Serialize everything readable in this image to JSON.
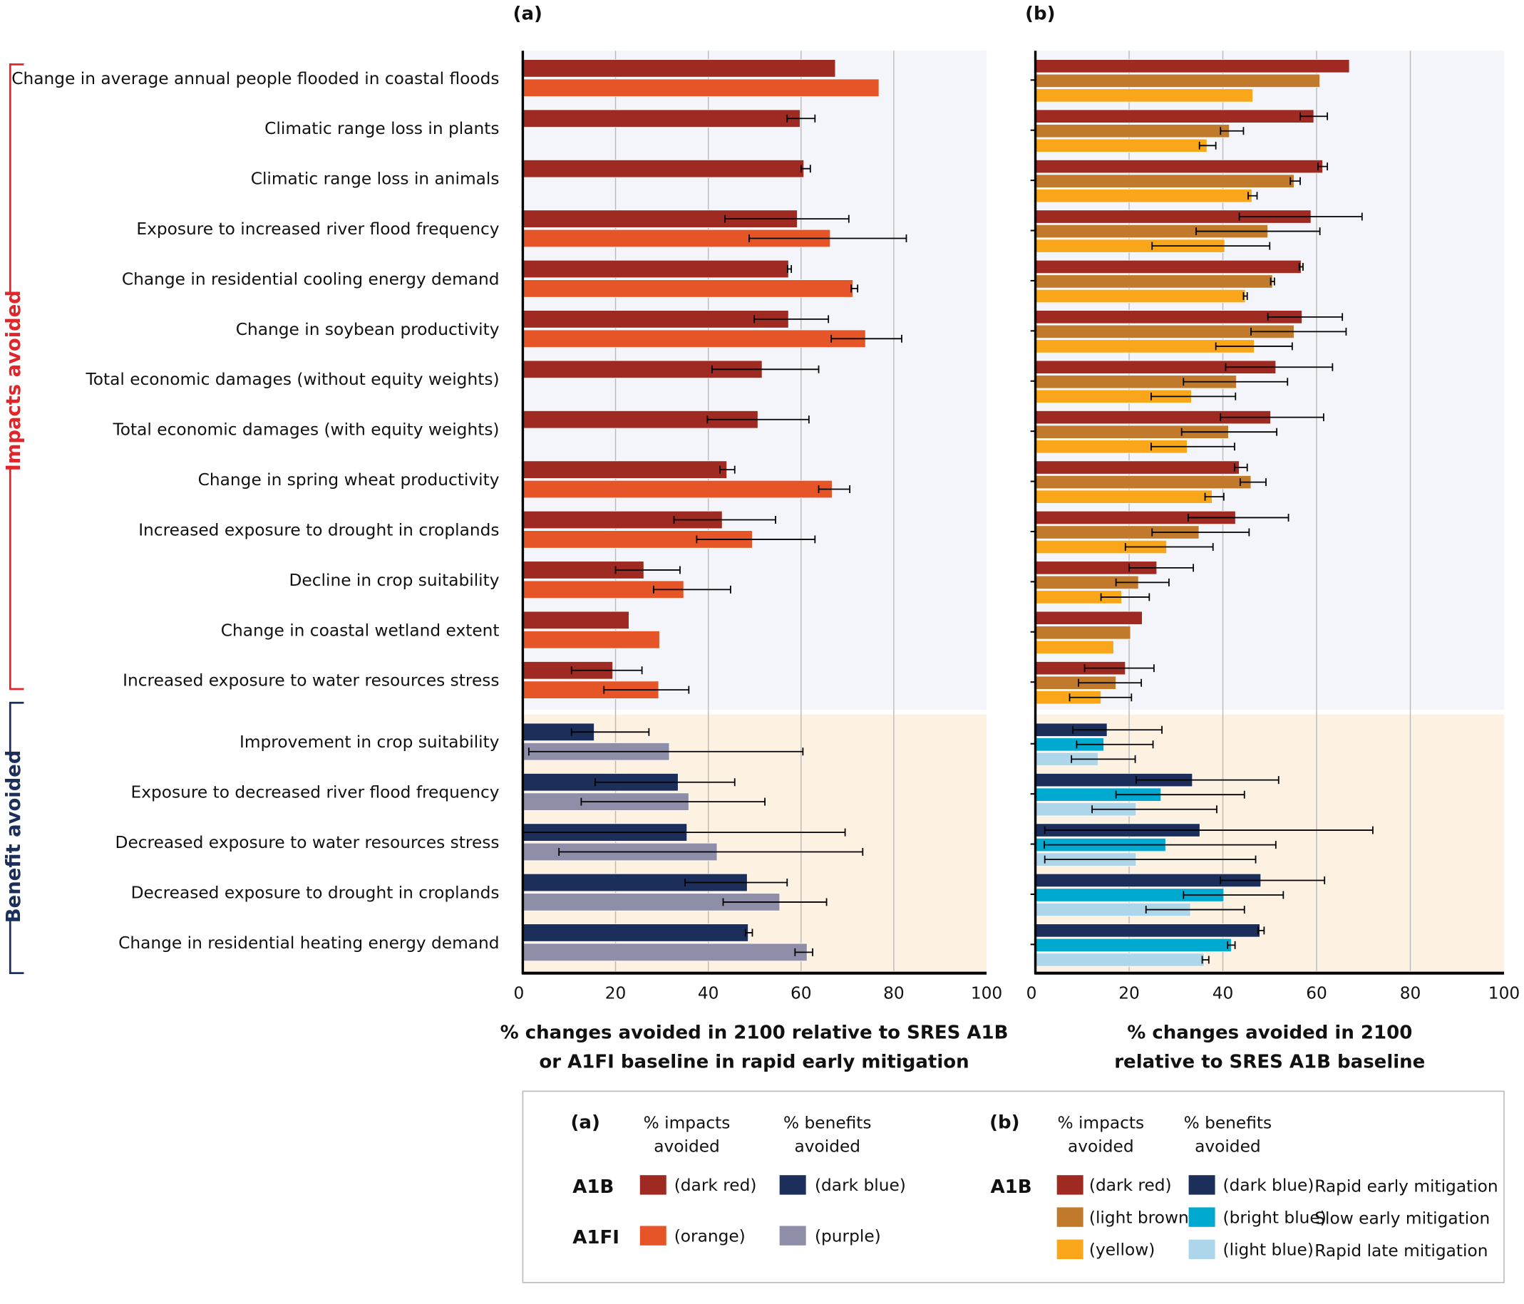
{
  "group_labels": {
    "impacts": "Impacts avoided",
    "benefits": "Benefit avoided"
  },
  "chart_data": [
    {
      "type": "bar",
      "panel": "(a)",
      "orientation": "horizontal",
      "xlabel": [
        "% changes avoided in 2100 relative to SRES A1B",
        "or A1FI baseline in rapid early mitigation"
      ],
      "xlim": [
        0,
        100
      ],
      "xticks": [
        "0",
        "20",
        "40",
        "60",
        "80",
        "100"
      ],
      "grid": true,
      "impact_categories": [
        "Change in average annual people flooded in coastal floods",
        "Climatic range loss in plants",
        "Climatic range loss in animals",
        "Exposure to increased river flood frequency",
        "Change in residential cooling energy demand",
        "Change in soybean productivity",
        "Total economic damages (without equity weights)",
        "Total economic damages (with equity weights)",
        "Change in spring wheat productivity",
        "Increased exposure to drought in croplands",
        "Decline in crop suitability",
        "Change in coastal wetland extent",
        "Increased exposure to water resources stress"
      ],
      "benefit_categories": [
        "Improvement in crop suitability",
        "Exposure to decreased river flood frequency",
        "Decreased exposure to water resources stress",
        "Decreased exposure to drought in croplands",
        "Change in residential heating energy demand"
      ],
      "impact_series": [
        {
          "name": "A1B",
          "color": "#9e2a22",
          "values": [
            67.4,
            59.8,
            60.6,
            59.2,
            57.3,
            57.3,
            51.6,
            50.7,
            44.0,
            43.0,
            26.1,
            22.9,
            19.4
          ],
          "errors": [
            null,
            [
              57,
              63
            ],
            [
              60,
              62
            ],
            [
              43.6,
              70.3
            ],
            [
              57.1,
              57.9
            ],
            [
              49.9,
              65.9
            ],
            [
              40.8,
              63.8
            ],
            [
              39.8,
              61.7
            ],
            [
              42.5,
              45.7
            ],
            [
              32.6,
              54.5
            ],
            [
              20,
              33.9
            ],
            null,
            [
              10.5,
              25.7
            ]
          ]
        },
        {
          "name": "A1FI",
          "color": "#e55527",
          "values": [
            76.8,
            null,
            null,
            66.3,
            71.2,
            73.9,
            null,
            null,
            66.7,
            49.5,
            34.7,
            29.5,
            29.3
          ],
          "errors": [
            null,
            null,
            null,
            [
              48.8,
              82.7
            ],
            [
              70.8,
              72.2
            ],
            [
              66.5,
              81.7
            ],
            null,
            null,
            [
              63.8,
              70.5
            ],
            [
              37.5,
              63
            ],
            [
              28.2,
              44.8
            ],
            null,
            [
              17.5,
              35.8
            ]
          ]
        }
      ],
      "benefit_series": [
        {
          "name": "A1B",
          "color": "#1b2f5a",
          "values": [
            15.4,
            33.5,
            35.4,
            48.4,
            48.6
          ],
          "errors": [
            [
              10.5,
              27.2
            ],
            [
              15.6,
              45.7
            ],
            [
              0,
              69.5
            ],
            [
              35,
              57
            ],
            [
              48,
              49.5
            ]
          ]
        },
        {
          "name": "A1FI",
          "color": "#8e8ea8",
          "values": [
            31.6,
            35.8,
            41.9,
            55.4,
            61.3
          ],
          "errors": [
            [
              1.3,
              60.4
            ],
            [
              12.6,
              52.2
            ],
            [
              7.8,
              73.3
            ],
            [
              43.2,
              65.5
            ],
            [
              58.7,
              62.5
            ]
          ]
        }
      ]
    },
    {
      "type": "bar",
      "panel": "(b)",
      "orientation": "horizontal",
      "xlabel": [
        "% changes avoided in 2100",
        "relative to SRES A1B baseline"
      ],
      "xlim": [
        0,
        100
      ],
      "xticks": [
        "0",
        "20",
        "40",
        "60",
        "80",
        "100"
      ],
      "grid": true,
      "impact_series": [
        {
          "name": "Rapid early mitigation",
          "color": "#9e2a22",
          "values": [
            67,
            59.4,
            61.3,
            58.8,
            56.7,
            56.9,
            51.3,
            50.2,
            43.5,
            42.7,
            25.9,
            22.8,
            19.2
          ],
          "errors": [
            null,
            [
              56.5,
              62.3
            ],
            [
              60.3,
              62.3
            ],
            [
              43.5,
              69.7
            ],
            [
              56.3,
              57.1
            ],
            [
              49.6,
              65.5
            ],
            [
              40.6,
              63.4
            ],
            [
              39.5,
              61.5
            ],
            [
              42.5,
              45.2
            ],
            [
              32.6,
              54
            ],
            [
              20,
              33.7
            ],
            null,
            [
              10.5,
              25.3
            ]
          ]
        },
        {
          "name": "Slow early mitigation",
          "color": "#c17a2b",
          "values": [
            60.7,
            41.4,
            55.2,
            49.6,
            50.6,
            55.2,
            42.9,
            41.2,
            46,
            34.9,
            22,
            20.3,
            17.2
          ],
          "errors": [
            null,
            [
              39.5,
              44.4
            ],
            [
              54.4,
              56.5
            ],
            [
              34.3,
              60.7
            ],
            [
              50.2,
              51
            ],
            [
              46,
              66.3
            ],
            [
              31.6,
              53.8
            ],
            [
              31.2,
              51.5
            ],
            [
              43.7,
              49.2
            ],
            [
              24.9,
              45.6
            ],
            [
              17.2,
              28.5
            ],
            null,
            [
              9.2,
              22.6
            ]
          ]
        },
        {
          "name": "Rapid late mitigation",
          "color": "#f9a61b",
          "values": [
            46.4,
            36.6,
            46.2,
            40.4,
            44.8,
            46.7,
            33.3,
            32.4,
            37.7,
            28,
            18.4,
            16.7,
            14
          ],
          "errors": [
            null,
            [
              35,
              38.5
            ],
            [
              45.4,
              47.3
            ],
            [
              24.9,
              50
            ],
            [
              44.4,
              45.2
            ],
            [
              38.5,
              54.8
            ],
            [
              24.7,
              42.7
            ],
            [
              24.7,
              42.5
            ],
            [
              36.2,
              40.2
            ],
            [
              19.2,
              37.9
            ],
            [
              14,
              24.3
            ],
            null,
            [
              7.3,
              20.5
            ]
          ]
        }
      ],
      "benefit_series": [
        {
          "name": "Rapid early mitigation",
          "color": "#1b2f5a",
          "values": [
            15.3,
            33.5,
            35.1,
            48.1,
            47.9
          ],
          "errors": [
            [
              8,
              27
            ],
            [
              21.5,
              51.9
            ],
            [
              2,
              72
            ],
            [
              39.5,
              61.7
            ],
            [
              47.5,
              48.8
            ]
          ]
        },
        {
          "name": "Slow early mitigation",
          "color": "#00a9d0",
          "values": [
            14.6,
            26.8,
            27.8,
            40.2,
            41.8
          ],
          "errors": [
            [
              8.8,
              25.1
            ],
            [
              17.2,
              44.6
            ],
            [
              1.9,
              51.3
            ],
            [
              31.6,
              52.9
            ],
            [
              41,
              42.6
            ]
          ]
        },
        {
          "name": "Rapid late mitigation",
          "color": "#aed6ea",
          "values": [
            13.4,
            21.5,
            21.5,
            33.1,
            36
          ],
          "errors": [
            [
              7.7,
              21.3
            ],
            [
              12.1,
              38.7
            ],
            [
              2,
              47
            ],
            [
              23.6,
              44.6
            ],
            [
              35.6,
              37
            ]
          ]
        }
      ]
    }
  ],
  "legend": {
    "a": {
      "panel": "(a)",
      "col_impacts": [
        "% impacts",
        "avoided"
      ],
      "col_benefits": [
        "% benefits",
        "avoided"
      ],
      "rows": [
        {
          "scenario": "A1B",
          "impact_color": "#9e2a22",
          "impact_label": "(dark red)",
          "benefit_color": "#1b2f5a",
          "benefit_label": "(dark blue)"
        },
        {
          "scenario": "A1FI",
          "impact_color": "#e55527",
          "impact_label": "(orange)",
          "benefit_color": "#8e8ea8",
          "benefit_label": "(purple)"
        }
      ]
    },
    "b": {
      "panel": "(b)",
      "scenario": "A1B",
      "col_impacts": [
        "% impacts",
        "avoided"
      ],
      "col_benefits": [
        "% benefits",
        "avoided"
      ],
      "rows": [
        {
          "impact_color": "#9e2a22",
          "impact_label": "(dark red)",
          "benefit_color": "#1b2f5a",
          "benefit_label": "(dark blue)",
          "pathway": "Rapid early mitigation"
        },
        {
          "impact_color": "#c17a2b",
          "impact_label": "(light brown)",
          "benefit_color": "#00a9d0",
          "benefit_label": "(bright blue)",
          "pathway": "Slow early mitigation"
        },
        {
          "impact_color": "#f9a61b",
          "impact_label": "(yellow)",
          "benefit_color": "#aed6ea",
          "benefit_label": "(light blue)",
          "pathway": "Rapid late mitigation"
        }
      ]
    }
  },
  "colors": {
    "impact_bg": "#f3f5fa",
    "benefit_bg": "#fdf1e1",
    "impact_bracket": "#e0262b",
    "benefit_bracket": "#1b2f5a"
  }
}
